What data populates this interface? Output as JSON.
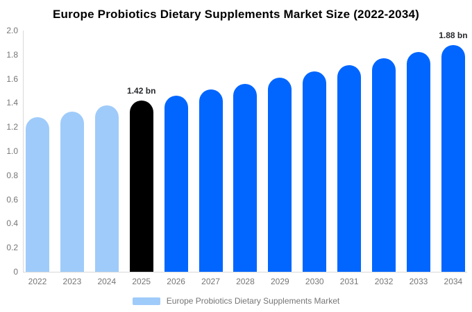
{
  "legend": {
    "label": "Europe Probiotics Dietary Supplements Market",
    "swatch_color": "#9fcbfa"
  },
  "colors": {
    "past_bars": "#9fcbfa",
    "highlight_bar": "#000000",
    "forecast_bars": "#0066ff",
    "axis_line": "#d9d9d9",
    "tick_text": "#757575",
    "annotation_text": "#26282b",
    "title_text": "#000000",
    "background": "#ffffff"
  },
  "chart_data": {
    "type": "bar",
    "title": "Europe Probiotics Dietary Supplements Market Size (2022-2034)",
    "xlabel": "",
    "ylabel": "",
    "unit": "bn",
    "categories": [
      "2022",
      "2023",
      "2024",
      "2025",
      "2026",
      "2027",
      "2028",
      "2029",
      "2030",
      "2031",
      "2032",
      "2033",
      "2034"
    ],
    "values": [
      1.28,
      1.33,
      1.38,
      1.42,
      1.46,
      1.51,
      1.56,
      1.61,
      1.66,
      1.71,
      1.77,
      1.82,
      1.88
    ],
    "bar_colors": [
      "#9fcbfa",
      "#9fcbfa",
      "#9fcbfa",
      "#000000",
      "#0066ff",
      "#0066ff",
      "#0066ff",
      "#0066ff",
      "#0066ff",
      "#0066ff",
      "#0066ff",
      "#0066ff",
      "#0066ff"
    ],
    "annotations": {
      "2025": "1.42 bn",
      "2034": "1.88 bn"
    },
    "ylim": [
      0,
      2.0
    ],
    "yticks": [
      {
        "value": 0,
        "label": "0"
      },
      {
        "value": 0.2,
        "label": "0.2"
      },
      {
        "value": 0.4,
        "label": "0.4"
      },
      {
        "value": 0.6,
        "label": "0.6"
      },
      {
        "value": 0.8,
        "label": "0.8"
      },
      {
        "value": 1.0,
        "label": "1.0"
      },
      {
        "value": 1.2,
        "label": "1.2"
      },
      {
        "value": 1.4,
        "label": "1.4"
      },
      {
        "value": 1.6,
        "label": "1.6"
      },
      {
        "value": 1.8,
        "label": "1.8"
      },
      {
        "value": 2.0,
        "label": "2.0"
      }
    ],
    "grid": false,
    "legend_position": "bottom"
  }
}
